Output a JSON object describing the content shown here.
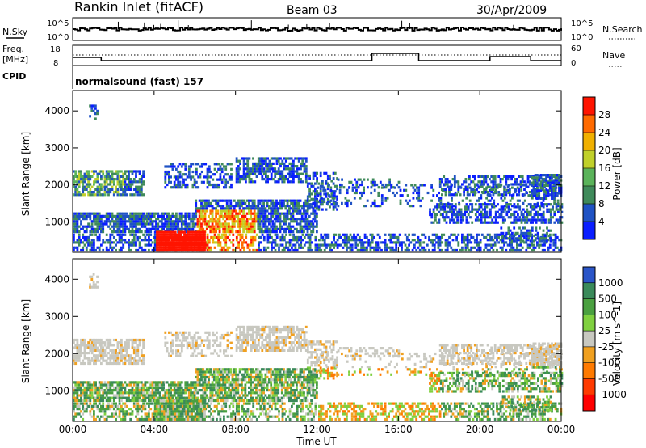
{
  "header": {
    "station": "Rankin Inlet (fitACF)",
    "beam": "Beam 03",
    "date": "30/Apr/2009"
  },
  "strip_labels": {
    "nsky": "N.Sky",
    "nsearch": "N.Search",
    "freq_line1": "Freq.",
    "freq_line2": "[MHz]",
    "nave": "Nave",
    "cpid": "CPID",
    "cpid_value": "normalsound (fast) 157",
    "noise_ticks_left": [
      "10^5",
      "10^0"
    ],
    "noise_ticks_right": [
      "10^5",
      "10^0"
    ],
    "freq_ticks_left": [
      "18",
      "8"
    ],
    "nave_ticks_right": [
      "60",
      "0"
    ]
  },
  "colors": {
    "power_scale": [
      "#0a1eff",
      "#1f52c4",
      "#3f8a5a",
      "#5ab35a",
      "#c0d02a",
      "#f0b000",
      "#ff6a00",
      "#ff1400"
    ],
    "velocity_scale": [
      "#2a55c8",
      "#3a8a5a",
      "#4aa040",
      "#80d040",
      "#c8c8c0",
      "#f0a020",
      "#ff7a00",
      "#ff3a00",
      "#ff0000"
    ]
  },
  "chart_data": [
    {
      "type": "heatmap",
      "title": "",
      "ylabel": "Slant Range [km]",
      "xlabel": "",
      "x_ticks": [
        "00:00",
        "04:00",
        "08:00",
        "12:00",
        "16:00",
        "20:00",
        "00:00"
      ],
      "y_ticks": [
        "1000",
        "2000",
        "3000",
        "4000"
      ],
      "ylim": [
        180,
        4550
      ],
      "colorbar": {
        "label": "Power [dB]",
        "ticks": [
          "4",
          "8",
          "12",
          "16",
          "20",
          "24",
          "28"
        ]
      },
      "grid": false
    },
    {
      "type": "heatmap",
      "title": "",
      "ylabel": "Slant Range [km]",
      "xlabel": "Time UT",
      "x_ticks": [
        "00:00",
        "04:00",
        "08:00",
        "12:00",
        "16:00",
        "20:00",
        "00:00"
      ],
      "y_ticks": [
        "1000",
        "2000",
        "3000",
        "4000"
      ],
      "ylim": [
        180,
        4550
      ],
      "colorbar": {
        "label": "Velocity [m s^-1]",
        "ticks": [
          "1000",
          "500",
          "100",
          "25",
          "-25",
          "-100",
          "-500",
          "-1000"
        ]
      },
      "grid": false
    }
  ]
}
